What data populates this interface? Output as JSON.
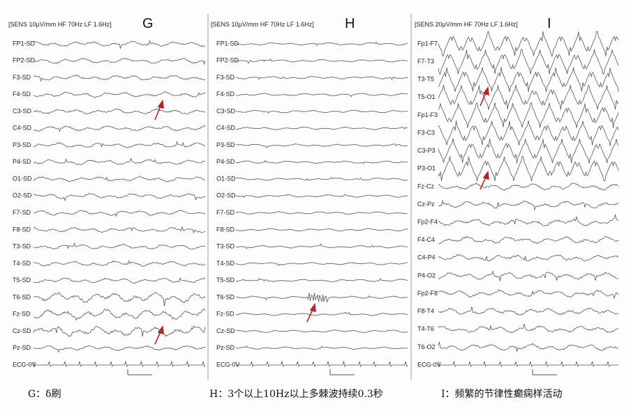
{
  "panels": [
    {
      "letter": "G",
      "header": "[SENS 10μV/mm  HF 70Hz  LF 1.6Hz]",
      "channels": [
        "FP1-SD",
        "FP2-SD",
        "F3-SD",
        "F4-SD",
        "C3-SD",
        "C4-SD",
        "P3-SD",
        "P4-SD",
        "O1-SD",
        "O2-SD",
        "F7-SD",
        "F8-SD",
        "T3-SD",
        "T4-SD",
        "T5-SD",
        "T6-SD",
        "Fz-SD",
        "Cz-SD",
        "Pz-SD",
        "ECG-0V"
      ]
    },
    {
      "letter": "H",
      "header": "[SENS 10μV/mm  HF 70Hz  LF 1.6Hz]",
      "channels": [
        "FP1-SD",
        "FP2-SD",
        "F3-SD",
        "F4-SD",
        "C3-SD",
        "C4-SD",
        "P3-SD",
        "P4-SD",
        "O1-SD",
        "O2-SD",
        "F7-SD",
        "F8-SD",
        "T3-SD",
        "T4-SD",
        "T5-SD",
        "T6-SD",
        "Fz-SD",
        "Cz-SD",
        "Pz-SD",
        "ECG-0V"
      ]
    },
    {
      "letter": "I",
      "header": "[SENS 20μV/mm  HF 70Hz  LF 1.6Hz]",
      "channels": [
        "Fp1-F7",
        "F7-T3",
        "T3-T5",
        "T5-O1",
        "Fp1-F3",
        "F3-C3",
        "C3-P3",
        "P3-O1",
        "Fz-Cz",
        "Cz-Pz",
        "Fp2-F4",
        "F4-C4",
        "C4-P4",
        "P4-O2",
        "Fp2-F8",
        "F8-T4",
        "T4-T6",
        "T6-O2",
        "ECG-0V"
      ]
    }
  ],
  "captions": [
    "G：δ刷",
    "H：3个以上10Hz以上多棘波持续0.3秒",
    "I：频繁的节律性癫痫样活动"
  ]
}
